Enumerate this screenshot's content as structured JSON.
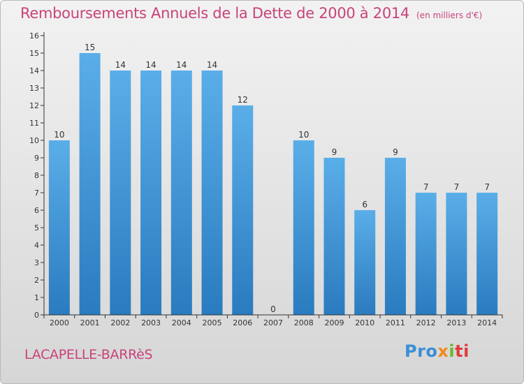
{
  "title": "Remboursements Annuels de la Dette de 2000 à 2014",
  "unit": "(en milliers d'€)",
  "commune": "LACAPELLE-BARRèS",
  "logo": {
    "parts": [
      "Pro",
      "x",
      "i",
      "ti"
    ],
    "colors": [
      "#3a8fd6",
      "#f28a1c",
      "#6bb82d",
      "#e23a3a"
    ]
  },
  "colors": {
    "bar_light": "#5aaee8",
    "bar_dark": "#2a7bbf",
    "title": "#c8437a",
    "axis": "#333333"
  },
  "chart_data": {
    "type": "bar",
    "categories": [
      "2000",
      "2001",
      "2002",
      "2003",
      "2004",
      "2005",
      "2006",
      "2007",
      "2008",
      "2009",
      "2010",
      "2011",
      "2012",
      "2013",
      "2014"
    ],
    "values": [
      10,
      15,
      14,
      14,
      14,
      14,
      12,
      0,
      10,
      9,
      6,
      9,
      7,
      7,
      7
    ],
    "ylim": [
      0,
      16
    ],
    "yticks": [
      0,
      1,
      2,
      3,
      4,
      5,
      6,
      7,
      8,
      9,
      10,
      11,
      12,
      13,
      14,
      15,
      16
    ],
    "grid": false,
    "legend": "none"
  }
}
